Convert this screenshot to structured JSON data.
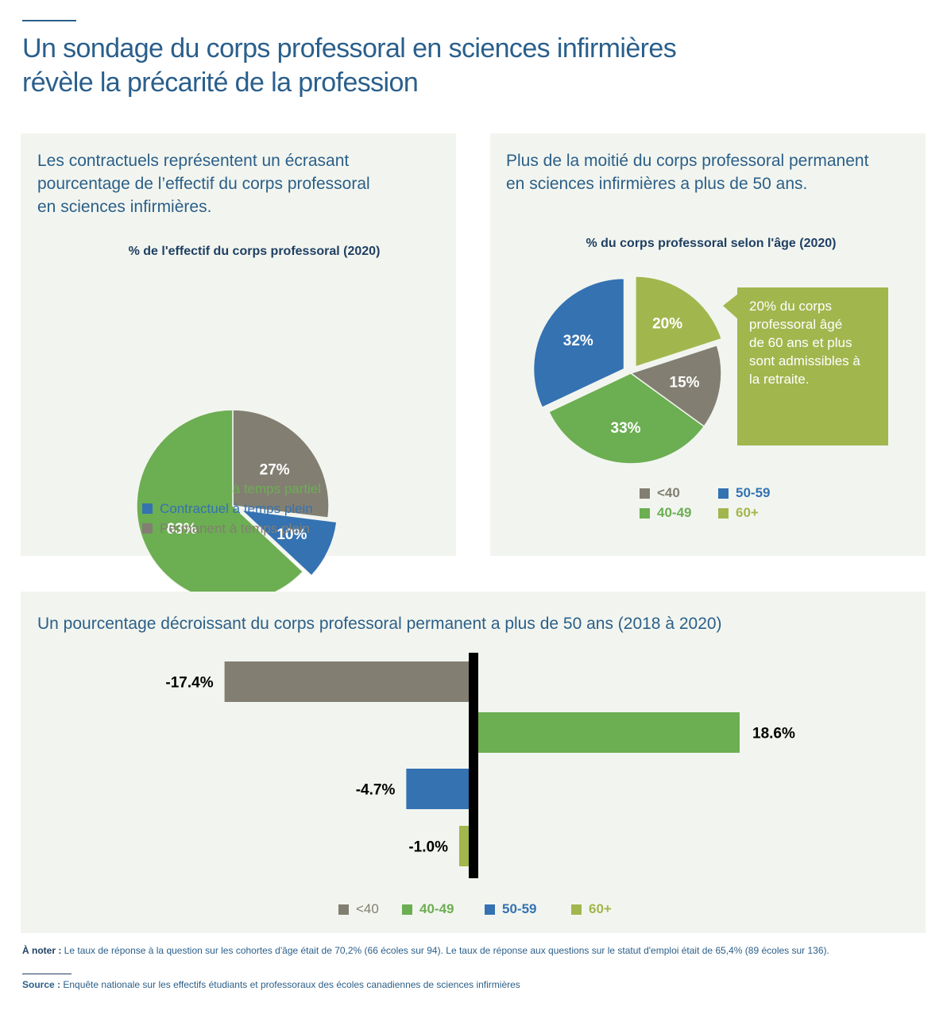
{
  "header": {
    "title_line1": "Un sondage du corps professoral en sciences infirmières",
    "title_line2": "révèle la précarité de la profession"
  },
  "colors": {
    "grey": "#827f72",
    "green": "#6cae52",
    "blue": "#3472b2",
    "lime": "#a2b64e",
    "black": "#000000"
  },
  "panel1": {
    "title_lines": [
      "Les contractuels représentent un écrasant",
      "pourcentage de l’effectif du corps professoral",
      "en sciences infirmières."
    ],
    "legend": [
      {
        "label": "Contractuel à temps partiel",
        "color": "#6cae52"
      },
      {
        "label": "Contractuel à temps plein",
        "color": "#3472b2"
      },
      {
        "label": "Permanent à temps plein",
        "color": "#827f72"
      }
    ]
  },
  "panel2": {
    "title_lines": [
      "Plus de la moitié du corps professoral permanent",
      "en sciences infirmières a plus de 50 ans."
    ],
    "callout_lines": [
      "20% du corps",
      "professoral âgé",
      "de 60 ans et plus",
      "sont admissibles à",
      "la retraite."
    ],
    "legend": [
      {
        "label": "<40",
        "color": "#827f72"
      },
      {
        "label": "50-59",
        "color": "#3472b2"
      },
      {
        "label": "40-49",
        "color": "#6cae52"
      },
      {
        "label": "60+",
        "color": "#a2b64e"
      }
    ]
  },
  "panel3": {
    "title": "Un pourcentage décroissant du corps professoral permanent a plus de 50 ans (2018 à 2020)",
    "legend": [
      {
        "label": "<40",
        "color": "#827f72"
      },
      {
        "label": "40-49",
        "color": "#6cae52"
      },
      {
        "label": "50-59",
        "color": "#3472b2"
      },
      {
        "label": "60+",
        "color": "#a2b64e"
      }
    ]
  },
  "footer": {
    "note_label": "À noter :",
    "note_text": " Le taux de réponse à la question sur les cohortes d'âge était de 70,2% (66 écoles sur 94). Le taux de réponse aux questions sur le statut d'emploi était de 65,4% (89 écoles sur 136).",
    "source_label": "Source :",
    "source_text": " Enquête nationale sur les effectifs étudiants et professoraux des écoles canadiennes de sciences infirmières"
  },
  "chart_data": [
    {
      "type": "pie",
      "title": "% de l'effectif du corps professoral (2020)",
      "slices": [
        {
          "label": "Permanent à temps plein",
          "value": 27,
          "display": "27%",
          "color": "#827f72",
          "exploded": false
        },
        {
          "label": "Contractuel à temps plein",
          "value": 10,
          "display": "10%",
          "color": "#3472b2",
          "exploded": true
        },
        {
          "label": "Contractuel à temps partiel",
          "value": 63,
          "display": "63%",
          "color": "#6cae52",
          "exploded": false
        }
      ]
    },
    {
      "type": "pie",
      "title": "% du corps professoral selon l'âge (2020)",
      "slices": [
        {
          "label": "60+",
          "value": 20,
          "display": "20%",
          "color": "#a2b64e",
          "exploded": true
        },
        {
          "label": "<40",
          "value": 15,
          "display": "15%",
          "color": "#827f72",
          "exploded": false
        },
        {
          "label": "40-49",
          "value": 33,
          "display": "33%",
          "color": "#6cae52",
          "exploded": false
        },
        {
          "label": "50-59",
          "value": 32,
          "display": "32%",
          "color": "#3472b2",
          "exploded": true
        }
      ]
    },
    {
      "type": "bar",
      "orientation": "horizontal",
      "title": "Un pourcentage décroissant du corps professoral permanent a plus de 50 ans (2018 à 2020)",
      "categories": [
        "<40",
        "40-49",
        "50-59",
        "60+"
      ],
      "values": [
        -17.4,
        18.6,
        -4.7,
        -1.0
      ],
      "labels": [
        "-17.4%",
        "18.6%",
        "-4.7%",
        "-1.0%"
      ],
      "colors": [
        "#827f72",
        "#6cae52",
        "#3472b2",
        "#a2b64e"
      ],
      "grid": false
    }
  ]
}
